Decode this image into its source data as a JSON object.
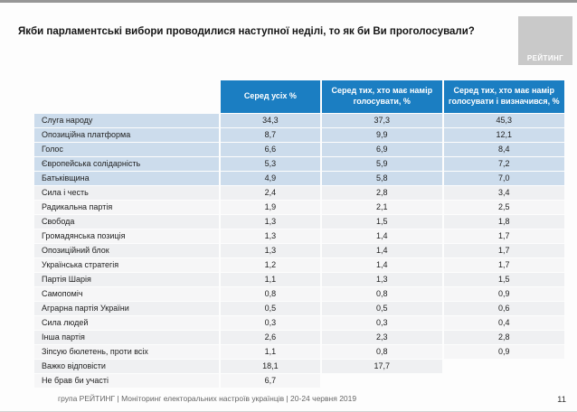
{
  "title": "Якби парламентські вибори проводилися наступної неділі, то як би Ви проголосували?",
  "logo_text": "РЕЙТИНГ",
  "footer": {
    "text": "група РЕЙТИНГ | Моніторинг електоральних настроїв українців | 20-24 червня 2019",
    "page_number": "11"
  },
  "colors": {
    "header_bg": "#1b7ec2",
    "header_text": "#ffffff",
    "highlight_row_bg": "#ccdcec",
    "row_bg_even": "#eff0f2",
    "row_bg_odd": "#f6f6f7",
    "logo_bg": "#c9c9c9"
  },
  "chart_data": {
    "type": "table",
    "title": "Якби парламентські вибори проводилися наступної неділі, то як би Ви проголосували?",
    "columns": [
      "",
      "Серед усіх %",
      "Серед тих, хто має намір голосувати, %",
      "Серед тих, хто має намір голосувати і визначився, %"
    ],
    "rows": [
      {
        "label": "Слуга народу",
        "values": [
          "34,3",
          "37,3",
          "45,3"
        ],
        "highlighted": true
      },
      {
        "label": "Опозиційна платформа",
        "values": [
          "8,7",
          "9,9",
          "12,1"
        ],
        "highlighted": true
      },
      {
        "label": "Голос",
        "values": [
          "6,6",
          "6,9",
          "8,4"
        ],
        "highlighted": true
      },
      {
        "label": "Європейська солідарність",
        "values": [
          "5,3",
          "5,9",
          "7,2"
        ],
        "highlighted": true
      },
      {
        "label": "Батьківщина",
        "values": [
          "4,9",
          "5,8",
          "7,0"
        ],
        "highlighted": true
      },
      {
        "label": "Сила і честь",
        "values": [
          "2,4",
          "2,8",
          "3,4"
        ],
        "highlighted": false
      },
      {
        "label": "Радикальна партія",
        "values": [
          "1,9",
          "2,1",
          "2,5"
        ],
        "highlighted": false
      },
      {
        "label": "Свобода",
        "values": [
          "1,3",
          "1,5",
          "1,8"
        ],
        "highlighted": false
      },
      {
        "label": "Громадянська позиція",
        "values": [
          "1,3",
          "1,4",
          "1,7"
        ],
        "highlighted": false
      },
      {
        "label": "Опозиційний блок",
        "values": [
          "1,3",
          "1,4",
          "1,7"
        ],
        "highlighted": false
      },
      {
        "label": "Українська стратегія",
        "values": [
          "1,2",
          "1,4",
          "1,7"
        ],
        "highlighted": false
      },
      {
        "label": "Партія Шарія",
        "values": [
          "1,1",
          "1,3",
          "1,5"
        ],
        "highlighted": false
      },
      {
        "label": "Самопоміч",
        "values": [
          "0,8",
          "0,8",
          "0,9"
        ],
        "highlighted": false
      },
      {
        "label": "Аграрна партія України",
        "values": [
          "0,5",
          "0,5",
          "0,6"
        ],
        "highlighted": false
      },
      {
        "label": "Сила людей",
        "values": [
          "0,3",
          "0,3",
          "0,4"
        ],
        "highlighted": false
      },
      {
        "label": "Інша партія",
        "values": [
          "2,6",
          "2,3",
          "2,8"
        ],
        "highlighted": false
      },
      {
        "label": "Зіпсую бюлетень, проти всіх",
        "values": [
          "1,1",
          "0,8",
          "0,9"
        ],
        "highlighted": false
      },
      {
        "label": "Важко відповісти",
        "values": [
          "18,1",
          "17,7",
          null
        ],
        "highlighted": false
      },
      {
        "label": "Не брав би участі",
        "values": [
          "6,7",
          null,
          null
        ],
        "highlighted": false
      }
    ]
  }
}
